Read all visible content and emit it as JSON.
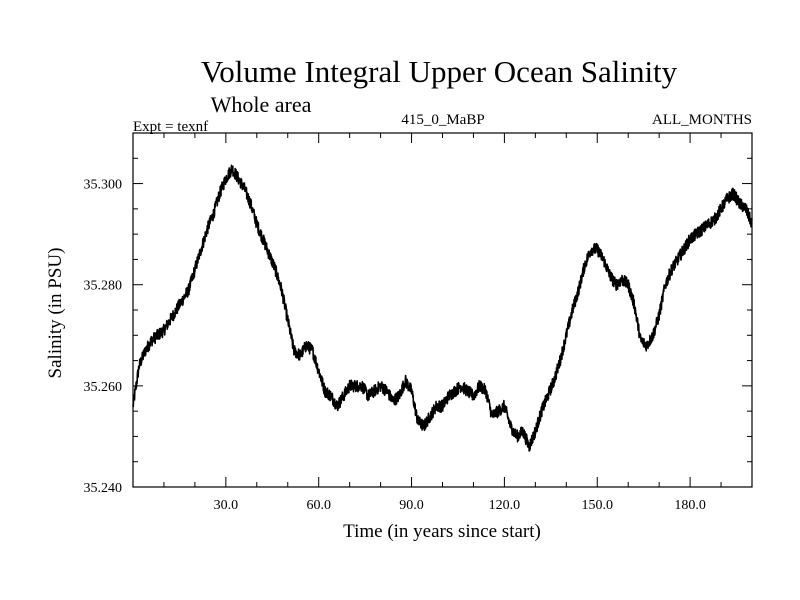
{
  "chart_data": {
    "type": "line",
    "title": "Volume Integral Upper Ocean Salinity",
    "subtitle": "Whole area",
    "left_label": "Expt = texnf",
    "center_label": "415_0_MaBP",
    "right_label": "ALL_MONTHS",
    "xlabel": "Time (in years since start)",
    "ylabel": "Salinity (in PSU)",
    "xlim": [
      0,
      200
    ],
    "ylim": [
      35.24,
      35.31
    ],
    "x_ticks": [
      30,
      60,
      90,
      120,
      150,
      180
    ],
    "x_tick_labels": [
      "30.0",
      "60.0",
      "90.0",
      "120.0",
      "150.0",
      "180.0"
    ],
    "y_ticks": [
      35.24,
      35.26,
      35.28,
      35.3
    ],
    "y_tick_labels": [
      "35.240",
      "35.260",
      "35.280",
      "35.300"
    ],
    "grid": false,
    "line_color": "#000000",
    "series": [
      {
        "name": "Salinity",
        "x": [
          0,
          2,
          4,
          6,
          8,
          10,
          12,
          14,
          16,
          18,
          20,
          22,
          24,
          26,
          28,
          30,
          32,
          34,
          36,
          38,
          40,
          42,
          44,
          46,
          48,
          50,
          52,
          54,
          56,
          58,
          60,
          62,
          64,
          66,
          68,
          70,
          72,
          74,
          76,
          78,
          80,
          82,
          84,
          86,
          88,
          90,
          92,
          94,
          96,
          98,
          100,
          102,
          104,
          106,
          108,
          110,
          112,
          114,
          116,
          118,
          120,
          122,
          124,
          126,
          128,
          130,
          132,
          134,
          136,
          138,
          140,
          142,
          144,
          146,
          148,
          150,
          152,
          154,
          156,
          158,
          160,
          162,
          164,
          166,
          168,
          170,
          172,
          174,
          176,
          178,
          180,
          182,
          184,
          186,
          188,
          190,
          192,
          194,
          196,
          198,
          200
        ],
        "values": [
          35.256,
          35.264,
          35.267,
          35.269,
          35.27,
          35.271,
          35.273,
          35.275,
          35.277,
          35.279,
          35.283,
          35.287,
          35.291,
          35.294,
          35.298,
          35.301,
          35.303,
          35.301,
          35.299,
          35.296,
          35.292,
          35.289,
          35.286,
          35.283,
          35.279,
          35.273,
          35.267,
          35.266,
          35.268,
          35.267,
          35.263,
          35.259,
          35.258,
          35.256,
          35.258,
          35.26,
          35.26,
          35.26,
          35.258,
          35.259,
          35.26,
          35.259,
          35.257,
          35.258,
          35.261,
          35.259,
          35.253,
          35.252,
          35.254,
          35.256,
          35.256,
          35.258,
          35.259,
          35.26,
          35.259,
          35.258,
          35.26,
          35.259,
          35.254,
          35.255,
          35.256,
          35.252,
          35.25,
          35.251,
          35.248,
          35.251,
          35.255,
          35.258,
          35.261,
          35.265,
          35.27,
          35.275,
          35.279,
          35.284,
          35.287,
          35.287,
          35.285,
          35.282,
          35.28,
          35.281,
          35.28,
          35.276,
          35.269,
          35.268,
          35.27,
          35.274,
          35.28,
          35.283,
          35.285,
          35.287,
          35.289,
          35.29,
          35.291,
          35.292,
          35.293,
          35.295,
          35.297,
          35.298,
          35.296,
          35.295,
          35.292
        ]
      }
    ]
  }
}
